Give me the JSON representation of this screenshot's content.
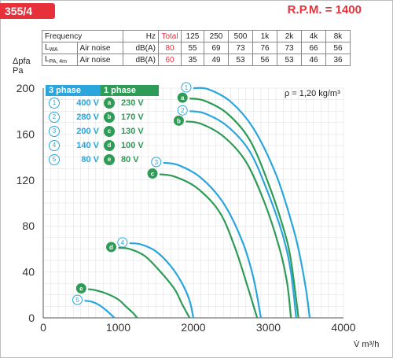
{
  "header": {
    "model": "355/4",
    "rpm": "R.P.M. = 1400"
  },
  "noise_table": {
    "columns": [
      "Frequency",
      "Hz",
      "Total",
      "125",
      "250",
      "500",
      "1k",
      "2k",
      "4k",
      "8k"
    ],
    "rows": [
      {
        "symbol": "L",
        "symbol_sub": "WA",
        "label": "Air noise",
        "unit": "dB(A)",
        "total": "80",
        "values": [
          "55",
          "69",
          "73",
          "76",
          "73",
          "66",
          "56"
        ]
      },
      {
        "symbol": "L",
        "symbol_sub": "PA, 4m",
        "label": "Air noise",
        "unit": "dB(A)",
        "total": "60",
        "values": [
          "35",
          "49",
          "53",
          "56",
          "53",
          "46",
          "36"
        ]
      }
    ]
  },
  "legend": {
    "three_phase_title": "3 phase",
    "one_phase_title": "1 phase",
    "three_phase": [
      {
        "mark": "1",
        "voltage": "400 V"
      },
      {
        "mark": "2",
        "voltage": "280 V"
      },
      {
        "mark": "3",
        "voltage": "200 V"
      },
      {
        "mark": "4",
        "voltage": "140 V"
      },
      {
        "mark": "5",
        "voltage": "80 V"
      }
    ],
    "one_phase": [
      {
        "mark": "a",
        "voltage": "230 V"
      },
      {
        "mark": "b",
        "voltage": "170 V"
      },
      {
        "mark": "c",
        "voltage": "130 V"
      },
      {
        "mark": "d",
        "voltage": "100 V"
      },
      {
        "mark": "e",
        "voltage": "80 V"
      }
    ]
  },
  "density_note": "ρ = 1,20 kg/m³",
  "chart_data": {
    "type": "line",
    "xlabel": "V̇ m³/h",
    "ylabel_top": "Δpfa",
    "ylabel_bottom": "Pa",
    "xlim": [
      0,
      4000
    ],
    "ylim": [
      0,
      200
    ],
    "xticks": [
      0,
      1000,
      2000,
      3000,
      4000
    ],
    "yticks": [
      0,
      40,
      80,
      120,
      160,
      200
    ],
    "grid": true,
    "colors": {
      "three_phase": "#2aa6dd",
      "one_phase": "#2e9b57"
    },
    "series": [
      {
        "name": "1",
        "group": "three_phase",
        "x": [
          2000,
          2200,
          2500,
          2800,
          3100,
          3300,
          3400,
          3500,
          3550
        ],
        "y": [
          200,
          199,
          188,
          165,
          125,
          85,
          60,
          25,
          0
        ]
      },
      {
        "name": "a",
        "group": "one_phase",
        "x": [
          1950,
          2150,
          2450,
          2750,
          3000,
          3200,
          3300,
          3400
        ],
        "y": [
          191,
          189,
          178,
          155,
          117,
          78,
          50,
          0
        ]
      },
      {
        "name": "2",
        "group": "three_phase",
        "x": [
          1950,
          2150,
          2450,
          2750,
          3000,
          3200,
          3300,
          3370
        ],
        "y": [
          180,
          178,
          167,
          145,
          108,
          70,
          40,
          0
        ]
      },
      {
        "name": "b",
        "group": "one_phase",
        "x": [
          1900,
          2100,
          2400,
          2700,
          2950,
          3150,
          3250,
          3300
        ],
        "y": [
          171,
          169,
          158,
          136,
          100,
          60,
          30,
          0
        ]
      },
      {
        "name": "3",
        "group": "three_phase",
        "x": [
          1600,
          1800,
          2100,
          2400,
          2650,
          2800,
          2900
        ],
        "y": [
          135,
          133,
          122,
          100,
          67,
          35,
          0
        ]
      },
      {
        "name": "c",
        "group": "one_phase",
        "x": [
          1550,
          1750,
          2050,
          2350,
          2550,
          2700,
          2850
        ],
        "y": [
          125,
          123,
          113,
          92,
          62,
          32,
          0
        ]
      },
      {
        "name": "4",
        "group": "three_phase",
        "x": [
          1150,
          1300,
          1500,
          1700,
          1850,
          1950,
          2000
        ],
        "y": [
          65,
          64,
          58,
          45,
          30,
          15,
          0
        ]
      },
      {
        "name": "d",
        "group": "one_phase",
        "x": [
          1000,
          1150,
          1350,
          1550,
          1750,
          1850,
          1950
        ],
        "y": [
          61,
          60,
          54,
          41,
          25,
          12,
          0
        ]
      },
      {
        "name": "e",
        "group": "one_phase",
        "x": [
          600,
          700,
          850,
          1000,
          1100,
          1200,
          1250
        ],
        "y": [
          25,
          24,
          21,
          16,
          10,
          4,
          0
        ]
      },
      {
        "name": "5",
        "group": "three_phase",
        "x": [
          550,
          650,
          750,
          850,
          950
        ],
        "y": [
          15,
          14,
          11,
          6,
          0
        ]
      }
    ]
  }
}
